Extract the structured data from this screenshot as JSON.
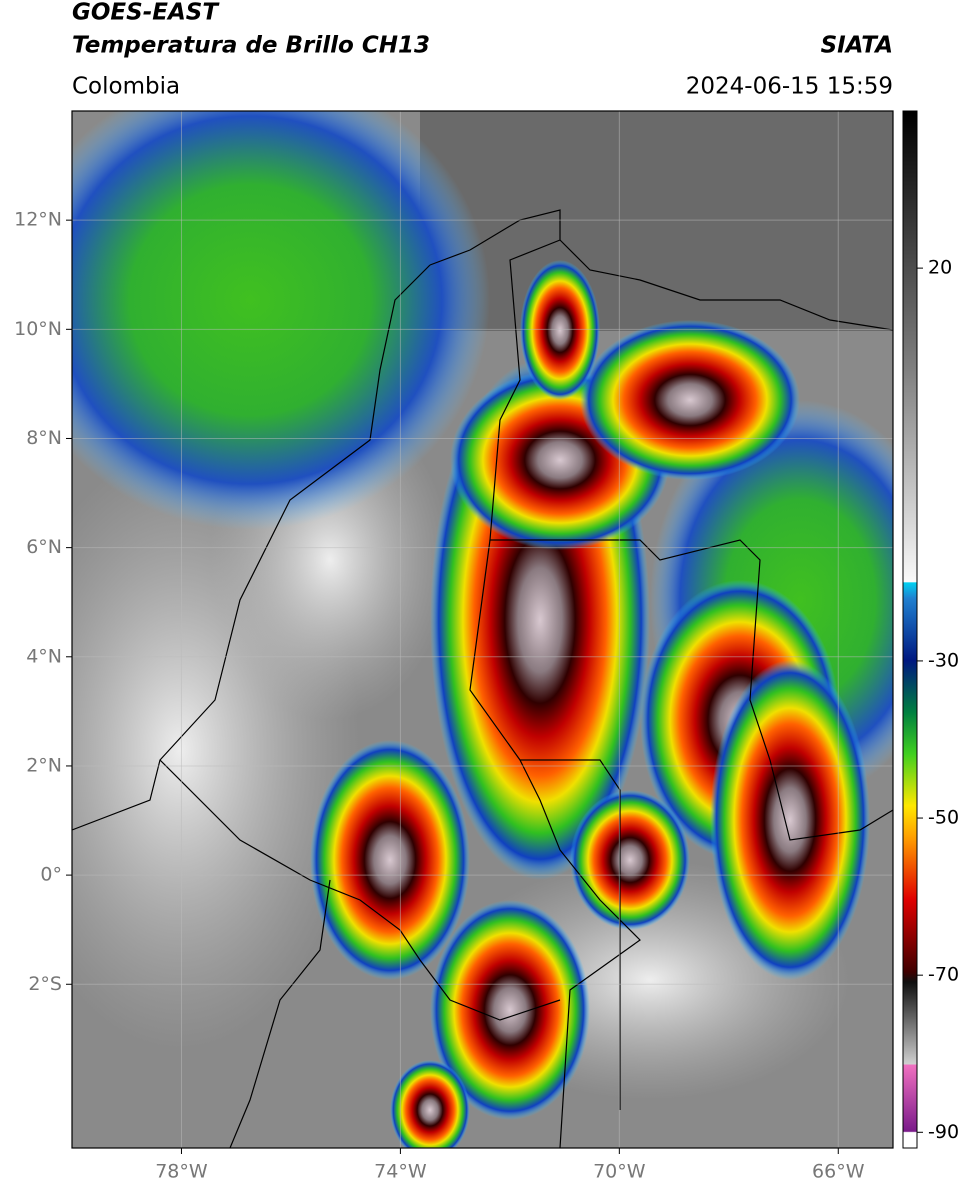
{
  "header": {
    "satellite": "GOES-EAST",
    "product": "Temperatura de Brillo CH13",
    "source": "SIATA",
    "region": "Colombia",
    "datetime": "2024-06-15 15:59"
  },
  "map": {
    "xlim": [
      -80,
      -65
    ],
    "ylim": [
      -5,
      14
    ],
    "xticks": [
      {
        "value": -78,
        "label": "78°W"
      },
      {
        "value": -74,
        "label": "74°W"
      },
      {
        "value": -70,
        "label": "70°W"
      },
      {
        "value": -66,
        "label": "66°W"
      }
    ],
    "yticks": [
      {
        "value": 12,
        "label": "12°N"
      },
      {
        "value": 10,
        "label": "10°N"
      },
      {
        "value": 8,
        "label": "8°N"
      },
      {
        "value": 6,
        "label": "6°N"
      },
      {
        "value": 4,
        "label": "4°N"
      },
      {
        "value": 2,
        "label": "2°N"
      },
      {
        "value": 0,
        "label": "0°"
      },
      {
        "value": -2,
        "label": "2°S"
      }
    ]
  },
  "colorbar": {
    "lim": [
      -92,
      40
    ],
    "ticks": [
      20,
      -30,
      -50,
      -70,
      -90
    ]
  }
}
